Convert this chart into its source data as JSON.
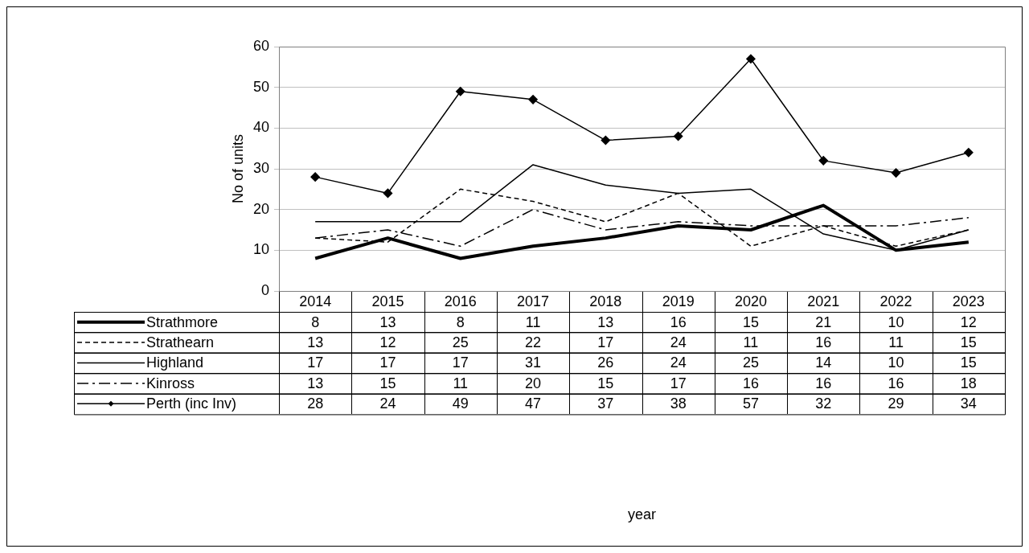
{
  "chart_data": {
    "type": "line",
    "annotations": [
      "year"
    ],
    "ylabel": "No of units",
    "categories": [
      "2014",
      "2015",
      "2016",
      "2017",
      "2018",
      "2019",
      "2020",
      "2021",
      "2022",
      "2023"
    ],
    "series": [
      {
        "name": "Strathmore",
        "color": "#000000",
        "line_style": "solid",
        "marker": "none",
        "values": [
          8,
          13,
          8,
          11,
          13,
          16,
          15,
          21,
          10,
          12
        ]
      },
      {
        "name": "Strathearn",
        "color": "#000000",
        "line_style": "dashed",
        "marker": "none",
        "values": [
          13,
          12,
          25,
          22,
          17,
          24,
          11,
          16,
          11,
          15
        ]
      },
      {
        "name": "Highland",
        "color": "#000000",
        "line_style": "solid",
        "marker": "none",
        "values": [
          17,
          17,
          17,
          31,
          26,
          24,
          25,
          14,
          10,
          15
        ]
      },
      {
        "name": "Kinross",
        "color": "#000000",
        "line_style": "dashdot",
        "marker": "none",
        "values": [
          13,
          15,
          11,
          20,
          15,
          17,
          16,
          16,
          16,
          18
        ]
      },
      {
        "name": "Perth (inc Inv)",
        "color": "#000000",
        "line_style": "solid",
        "marker": "diamond",
        "values": [
          28,
          24,
          49,
          47,
          37,
          38,
          57,
          32,
          29,
          34
        ]
      }
    ],
    "ylim": [
      0,
      60
    ],
    "yticks": [
      0,
      10,
      20,
      30,
      40,
      50,
      60
    ],
    "grid": "y",
    "legend": "bottom",
    "data_labels": true
  }
}
